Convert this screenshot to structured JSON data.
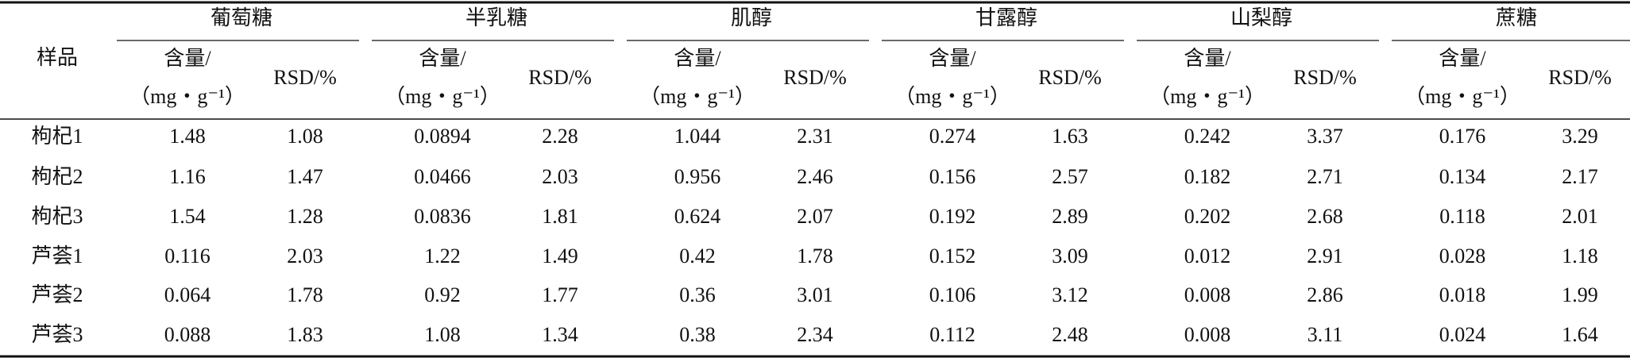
{
  "table": {
    "header": {
      "sample": "样品",
      "groups": [
        "葡萄糖",
        "半乳糖",
        "肌醇",
        "甘露醇",
        "山梨醇",
        "蔗糖"
      ],
      "content": "含量/",
      "unit": "（mg・g⁻¹）",
      "rsd": "RSD/%"
    },
    "rows": [
      [
        "枸杞1",
        "1.48",
        "1.08",
        "0.0894",
        "2.28",
        "1.044",
        "2.31",
        "0.274",
        "1.63",
        "0.242",
        "3.37",
        "0.176",
        "3.29"
      ],
      [
        "枸杞2",
        "1.16",
        "1.47",
        "0.0466",
        "2.03",
        "0.956",
        "2.46",
        "0.156",
        "2.57",
        "0.182",
        "2.71",
        "0.134",
        "2.17"
      ],
      [
        "枸杞3",
        "1.54",
        "1.28",
        "0.0836",
        "1.81",
        "0.624",
        "2.07",
        "0.192",
        "2.89",
        "0.202",
        "2.68",
        "0.118",
        "2.01"
      ],
      [
        "芦荟1",
        "0.116",
        "2.03",
        "1.22",
        "1.49",
        "0.42",
        "1.78",
        "0.152",
        "3.09",
        "0.012",
        "2.91",
        "0.028",
        "1.18"
      ],
      [
        "芦荟2",
        "0.064",
        "1.78",
        "0.92",
        "1.77",
        "0.36",
        "3.01",
        "0.106",
        "3.12",
        "0.008",
        "2.86",
        "0.018",
        "1.99"
      ],
      [
        "芦荟3",
        "0.088",
        "1.83",
        "1.08",
        "1.34",
        "0.38",
        "2.34",
        "0.112",
        "2.48",
        "0.008",
        "3.11",
        "0.024",
        "1.64"
      ]
    ]
  }
}
